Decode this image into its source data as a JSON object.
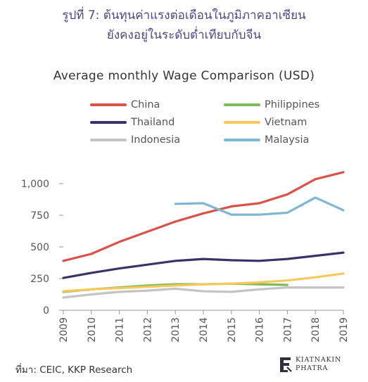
{
  "header": {
    "line1": "รูปที่ 7: ต้นทุนค่าแรงต่อเดือนในภูมิภาคอาเซียน",
    "line2": "ยังคงอยู่ในระดับต่ำเทียบกับจีน"
  },
  "source": "ที่มา: CEIC, KKP Research",
  "logo": {
    "line1": "KIATNAKIN",
    "line2": "PHATRA"
  },
  "chart_data": {
    "type": "line",
    "title": "Average monthly Wage Comparison (USD)",
    "xlabel": "",
    "ylabel": "",
    "x": [
      2009,
      2010,
      2011,
      2012,
      2013,
      2014,
      2015,
      2016,
      2017,
      2018,
      2019
    ],
    "x_tick_labels": [
      "2009",
      "2010",
      "2011",
      "2012",
      "2013",
      "2014",
      "2015",
      "2016",
      "2017",
      "2018",
      "2019"
    ],
    "ylim": [
      0,
      1100
    ],
    "y_ticks": [
      0,
      250,
      500,
      750,
      1000
    ],
    "y_tick_labels": [
      "0",
      "250",
      "500",
      "750",
      "1,000"
    ],
    "grid": false,
    "legend_position": "top",
    "series": [
      {
        "name": "China",
        "color": "#d9534a",
        "values": [
          390,
          445,
          540,
          620,
          700,
          765,
          820,
          845,
          915,
          1035,
          1090
        ]
      },
      {
        "name": "Philippines",
        "color": "#7fba5a",
        "values": [
          145,
          165,
          180,
          195,
          205,
          205,
          210,
          205,
          200,
          null,
          null
        ]
      },
      {
        "name": "Thailand",
        "color": "#3b3367",
        "values": [
          255,
          295,
          330,
          360,
          390,
          405,
          395,
          390,
          405,
          430,
          455
        ]
      },
      {
        "name": "Vietnam",
        "color": "#f7c85a",
        "values": [
          150,
          165,
          175,
          185,
          195,
          205,
          210,
          220,
          235,
          260,
          290
        ]
      },
      {
        "name": "Indonesia",
        "color": "#c4c4c4",
        "values": [
          100,
          125,
          145,
          155,
          170,
          150,
          145,
          165,
          180,
          180,
          180
        ]
      },
      {
        "name": "Malaysia",
        "color": "#7fb6d4",
        "values": [
          null,
          null,
          null,
          null,
          840,
          845,
          755,
          755,
          770,
          890,
          790
        ]
      }
    ]
  }
}
